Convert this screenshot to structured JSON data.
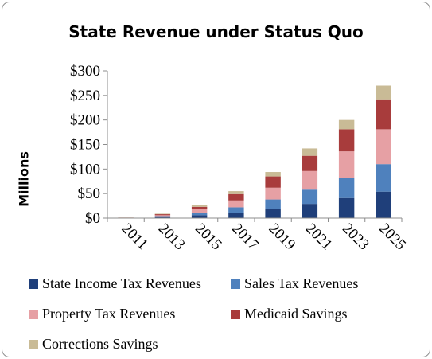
{
  "chart_data": {
    "type": "bar",
    "stacked": true,
    "title": "State Revenue under Status Quo",
    "ylabel": "Millions",
    "xlabel": "",
    "ylim": [
      0,
      300
    ],
    "yticks": [
      0,
      50,
      100,
      150,
      200,
      250,
      300
    ],
    "ytick_labels": [
      "$0",
      "$50",
      "$100",
      "$150",
      "$200",
      "$250",
      "$300"
    ],
    "categories": [
      "2011",
      "2013",
      "2015",
      "2017",
      "2019",
      "2021",
      "2023",
      "2025"
    ],
    "grid": false,
    "legend_position": "bottom",
    "series": [
      {
        "name": "State Income Tax Revenues",
        "color": "#1f3f7a",
        "values": [
          0.2,
          2,
          6,
          11,
          19,
          29,
          41,
          54
        ]
      },
      {
        "name": "Sales Tax Revenues",
        "color": "#4f81bd",
        "values": [
          0.2,
          2,
          5,
          11,
          19,
          29,
          41,
          56
        ]
      },
      {
        "name": "Property Tax Revenues",
        "color": "#e6a0a4",
        "values": [
          0.3,
          2,
          7,
          14,
          24,
          38,
          54,
          71
        ]
      },
      {
        "name": "Medicaid Savings",
        "color": "#a83c3c",
        "values": [
          0.3,
          2,
          5,
          13,
          23,
          31,
          45,
          61
        ]
      },
      {
        "name": "Corrections Savings",
        "color": "#c9bb96",
        "values": [
          0.2,
          1,
          4,
          6,
          9,
          15,
          19,
          28
        ]
      }
    ]
  }
}
